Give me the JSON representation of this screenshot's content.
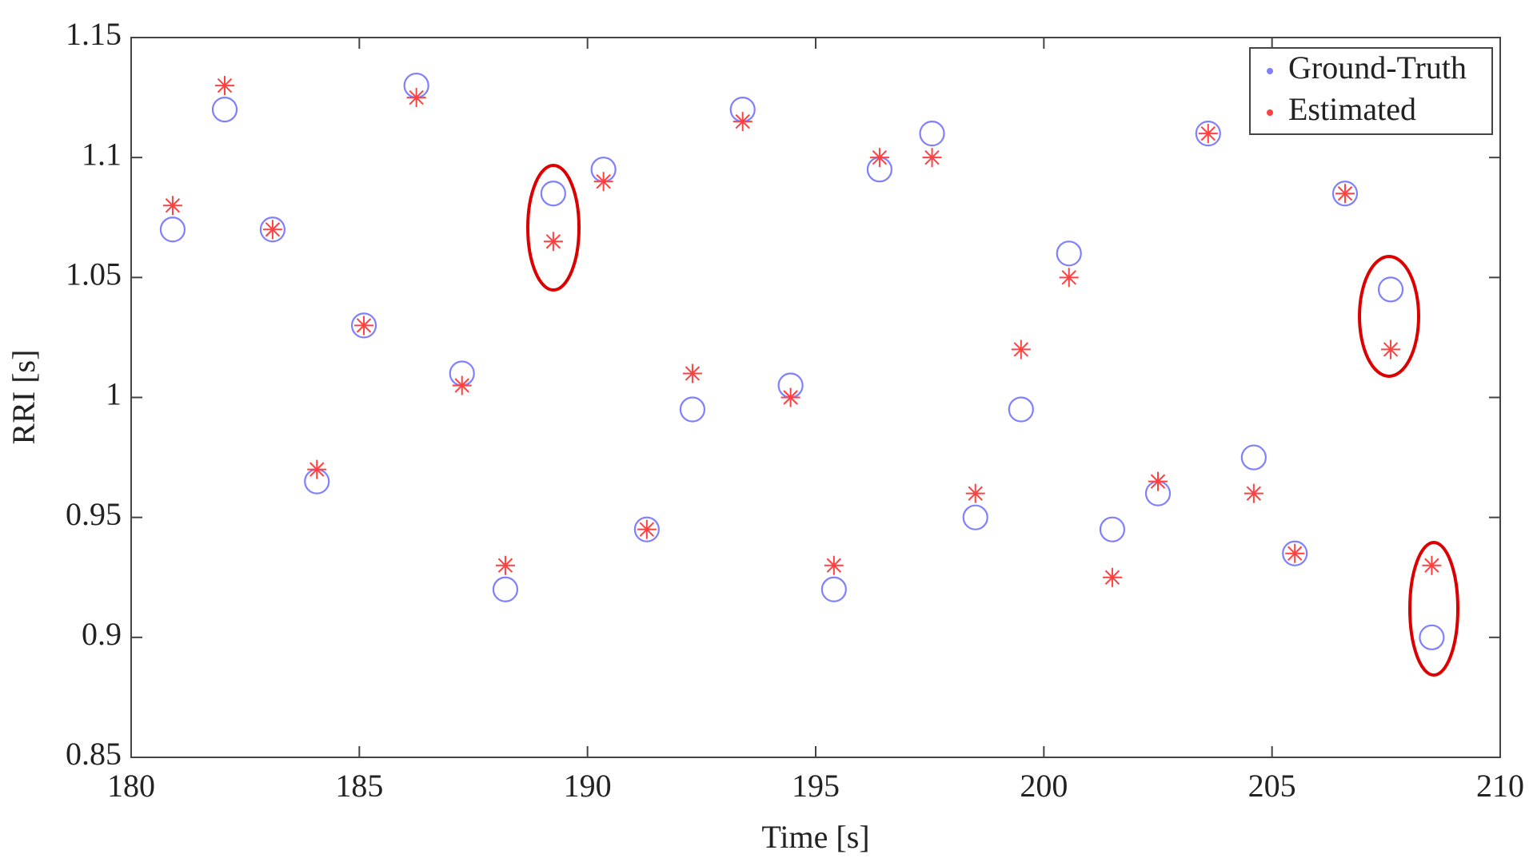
{
  "chart_data": {
    "type": "scatter",
    "xlabel": "Time [s]",
    "ylabel": "RRI [s]",
    "x": [
      180.91,
      182.05,
      183.1,
      184.07,
      185.1,
      186.25,
      187.25,
      188.2,
      189.25,
      190.35,
      191.3,
      192.3,
      193.4,
      194.45,
      195.4,
      196.4,
      197.55,
      198.5,
      199.5,
      200.55,
      201.5,
      202.5,
      203.6,
      204.6,
      205.5,
      206.6,
      207.6,
      208.5
    ],
    "series": [
      {
        "name": "Ground-Truth",
        "color": "#8080ff",
        "marker": "circle",
        "values": [
          1.07,
          1.12,
          1.07,
          0.965,
          1.03,
          1.13,
          1.01,
          0.92,
          1.085,
          1.095,
          0.945,
          0.995,
          1.12,
          1.005,
          0.92,
          1.095,
          1.11,
          0.95,
          0.995,
          1.06,
          0.945,
          0.96,
          1.11,
          0.975,
          0.935,
          1.085,
          1.045,
          0.9
        ]
      },
      {
        "name": "Estimated",
        "color": "#ff4040",
        "marker": "asterisk",
        "values": [
          1.08,
          1.13,
          1.07,
          0.97,
          1.03,
          1.125,
          1.005,
          0.93,
          1.065,
          1.09,
          0.945,
          1.01,
          1.115,
          1.0,
          0.93,
          1.1,
          1.1,
          0.96,
          1.02,
          1.05,
          0.925,
          0.965,
          1.11,
          0.96,
          0.935,
          1.085,
          1.02,
          0.93
        ]
      }
    ],
    "xlim": [
      180,
      210
    ],
    "xticks": [
      180,
      185,
      190,
      195,
      200,
      205,
      210
    ],
    "ylim": [
      0.85,
      1.15
    ],
    "yticks": [
      0.85,
      0.9,
      0.95,
      1,
      1.05,
      1.1,
      1.15
    ],
    "legend": "northeast"
  }
}
